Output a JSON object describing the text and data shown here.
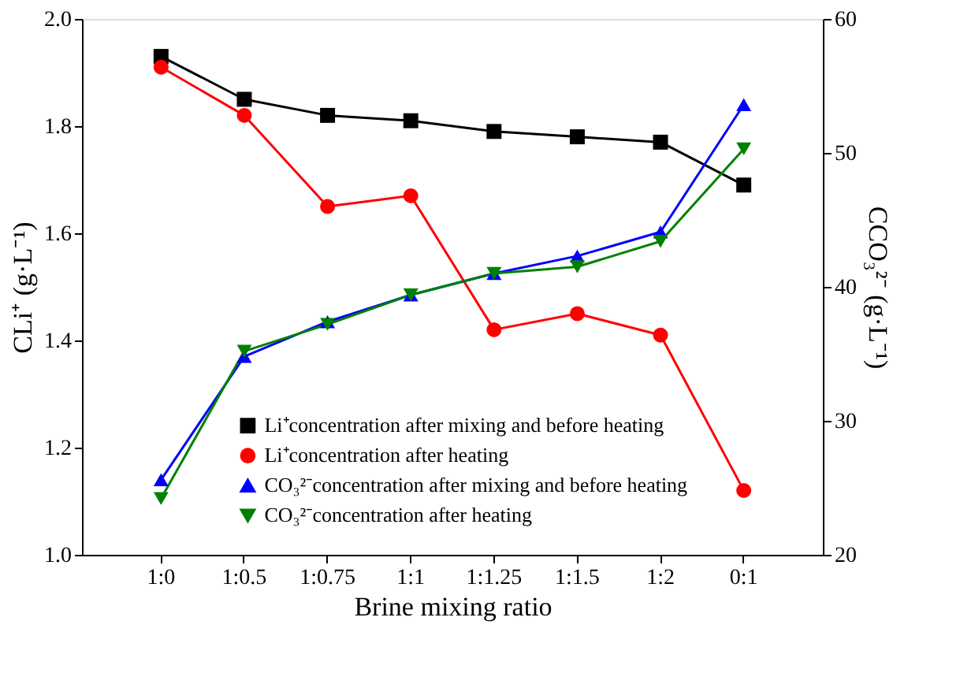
{
  "chart_data": {
    "type": "line",
    "xlabel": "Brine mixing ratio",
    "ylabel": "CLi⁺ (g·L⁻¹)",
    "y2label": "CCO₃²⁻ (g·L⁻¹)",
    "categories": [
      "1:0",
      "1:0.5",
      "1:0.75",
      "1:1",
      "1:1.25",
      "1:1.5",
      "1:2",
      "0:1"
    ],
    "series": [
      {
        "name": "Li⁺concentration after mixing and before heating",
        "color": "#000000",
        "marker": "square",
        "values": [
          1.93,
          1.85,
          1.82,
          1.81,
          1.79,
          1.78,
          1.77,
          1.69
        ]
      },
      {
        "name": "Li⁺concentration after heating",
        "color": "#ff0000",
        "marker": "circle",
        "values": [
          1.91,
          1.82,
          1.65,
          1.67,
          1.42,
          1.45,
          1.41,
          1.12
        ]
      },
      {
        "name": "CO₃²⁻concentration after mixing and before heating",
        "color": "#0000ff",
        "marker": "triangle",
        "axis": "y2",
        "values": [
          25.6,
          34.8,
          37.4,
          39.4,
          41.0,
          42.3,
          44.1,
          53.6
        ]
      },
      {
        "name": "CO₃²⁻concentration after heating",
        "color": "#008000",
        "marker": "triangle-down",
        "axis": "y2",
        "values": [
          24.2,
          35.2,
          37.2,
          39.4,
          41.0,
          41.5,
          43.4,
          50.3
        ]
      }
    ],
    "ylim": [
      1.0,
      2.0
    ],
    "yticks": [
      {
        "value": 1,
        "label": "1.0"
      },
      1.2,
      1.4,
      1.6,
      1.8,
      {
        "value": 2,
        "label": "2.0"
      }
    ],
    "y2lim": [
      20,
      60
    ],
    "y2ticks": [
      20,
      30,
      40,
      50,
      60
    ],
    "grid": false,
    "legend": "bottom"
  }
}
